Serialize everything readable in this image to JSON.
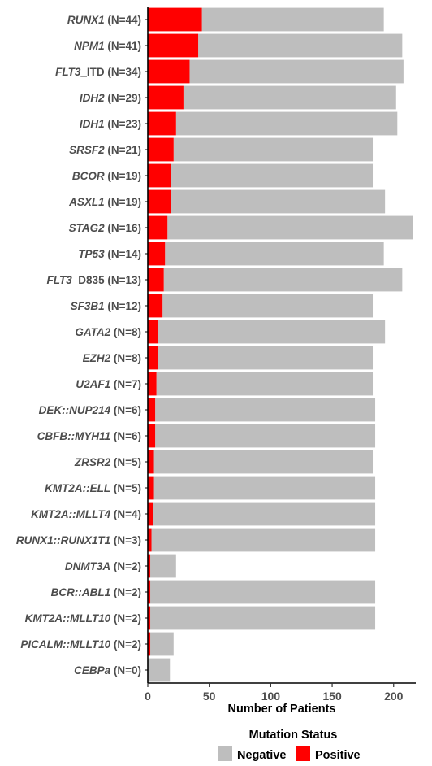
{
  "chart_data": {
    "type": "bar",
    "orientation": "horizontal",
    "stacked": true,
    "xlabel": "Number of Patients",
    "ylabel": "",
    "xlim": [
      0,
      218
    ],
    "xticks": [
      0,
      50,
      100,
      150,
      200
    ],
    "grid": false,
    "legend": {
      "title": "Mutation Status",
      "placement": "bottom",
      "entries": [
        {
          "name": "Negative",
          "color": "#bebebe"
        },
        {
          "name": "Positive",
          "color": "#ff0000"
        }
      ]
    },
    "categories": [
      {
        "gene": "RUNX1",
        "suffix": "",
        "n": "(N=44)"
      },
      {
        "gene": "NPM1",
        "suffix": "",
        "n": "(N=41)"
      },
      {
        "gene": "FLT3",
        "suffix": "_ITD",
        "n": "(N=34)"
      },
      {
        "gene": "IDH2",
        "suffix": "",
        "n": "(N=29)"
      },
      {
        "gene": "IDH1",
        "suffix": "",
        "n": "(N=23)"
      },
      {
        "gene": "SRSF2",
        "suffix": "",
        "n": "(N=21)"
      },
      {
        "gene": "BCOR",
        "suffix": "",
        "n": "(N=19)"
      },
      {
        "gene": "ASXL1",
        "suffix": "",
        "n": "(N=19)"
      },
      {
        "gene": "STAG2",
        "suffix": "",
        "n": "(N=16)"
      },
      {
        "gene": "TP53",
        "suffix": "",
        "n": "(N=14)"
      },
      {
        "gene": "FLT3",
        "suffix": "_D835",
        "n": "(N=13)"
      },
      {
        "gene": "SF3B1",
        "suffix": "",
        "n": "(N=12)"
      },
      {
        "gene": "GATA2",
        "suffix": "",
        "n": "(N=8)"
      },
      {
        "gene": "EZH2",
        "suffix": "",
        "n": "(N=8)"
      },
      {
        "gene": "U2AF1",
        "suffix": "",
        "n": "(N=7)"
      },
      {
        "gene": "DEK::NUP214",
        "suffix": "",
        "n": "(N=6)"
      },
      {
        "gene": "CBFB::MYH11",
        "suffix": "",
        "n": "(N=6)"
      },
      {
        "gene": "ZRSR2",
        "suffix": "",
        "n": "(N=5)"
      },
      {
        "gene": "KMT2A::ELL",
        "suffix": "",
        "n": "(N=5)"
      },
      {
        "gene": "KMT2A::MLLT4",
        "suffix": "",
        "n": "(N=4)"
      },
      {
        "gene": "RUNX1::RUNX1T1",
        "suffix": "",
        "n": "(N=3)"
      },
      {
        "gene": "DNMT3A",
        "suffix": "",
        "n": "(N=2)"
      },
      {
        "gene": "BCR::ABL1",
        "suffix": "",
        "n": "(N=2)"
      },
      {
        "gene": "KMT2A::MLLT10",
        "suffix": "",
        "n": "(N=2)"
      },
      {
        "gene": "PICALM::MLLT10",
        "suffix": "",
        "n": "(N=2)"
      },
      {
        "gene": "CEBPa",
        "suffix": "",
        "n": "(N=0)"
      }
    ],
    "series": [
      {
        "name": "Positive",
        "values": [
          44,
          41,
          34,
          29,
          23,
          21,
          19,
          19,
          16,
          14,
          13,
          12,
          8,
          8,
          7,
          6,
          6,
          5,
          5,
          4,
          3,
          2,
          2,
          2,
          2,
          0
        ]
      },
      {
        "name": "Negative",
        "values": [
          148,
          166,
          174,
          173,
          180,
          162,
          164,
          174,
          200,
          178,
          194,
          171,
          185,
          175,
          176,
          179,
          179,
          178,
          180,
          181,
          182,
          21,
          183,
          183,
          19,
          18
        ]
      }
    ]
  }
}
